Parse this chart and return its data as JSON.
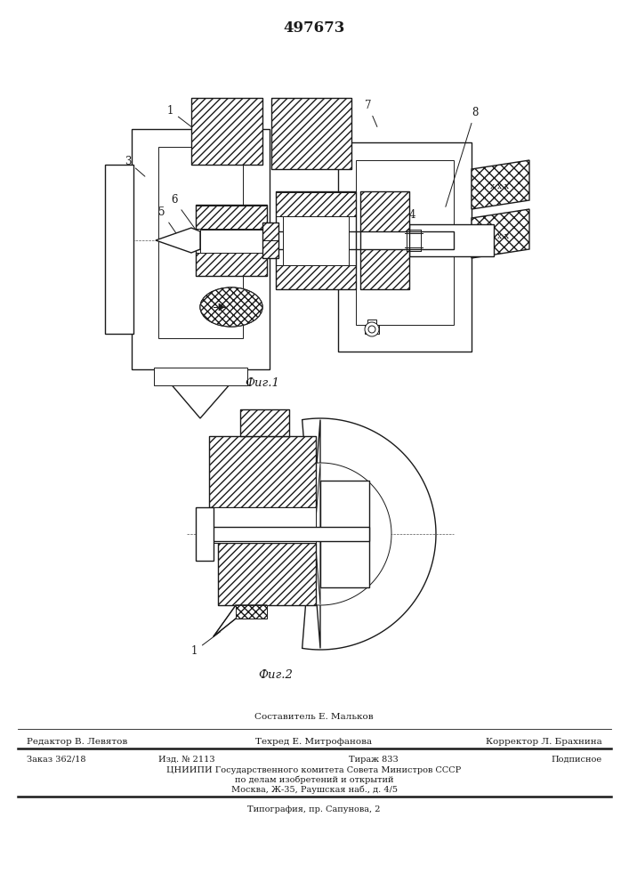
{
  "title": "497673",
  "bg_color": "#ffffff",
  "footer": {
    "line1_center": "Составитель Е. Мальков",
    "line2_left": "Редактор В. Левятов",
    "line2_center": "Техред Е. Митрофанова",
    "line2_right": "Корректор Л. Брахнина",
    "line3_left": "Заказ 362/18",
    "line3_c1": "Изд. № 2113",
    "line3_c2": "Тираж 833",
    "line3_right": "Подписное",
    "line4": "ЦНИИПИ Государственного комитета Совета Министров СССР",
    "line5": "по делам изобретений и открытий",
    "line6": "Москва, Ж-35, Раушская наб., д. 4/5",
    "line7": "Типография, пр. Сапунова, 2"
  },
  "fig1_caption": "Фиг.1",
  "fig2_caption": "Фиг.2",
  "line_color": "#1a1a1a"
}
